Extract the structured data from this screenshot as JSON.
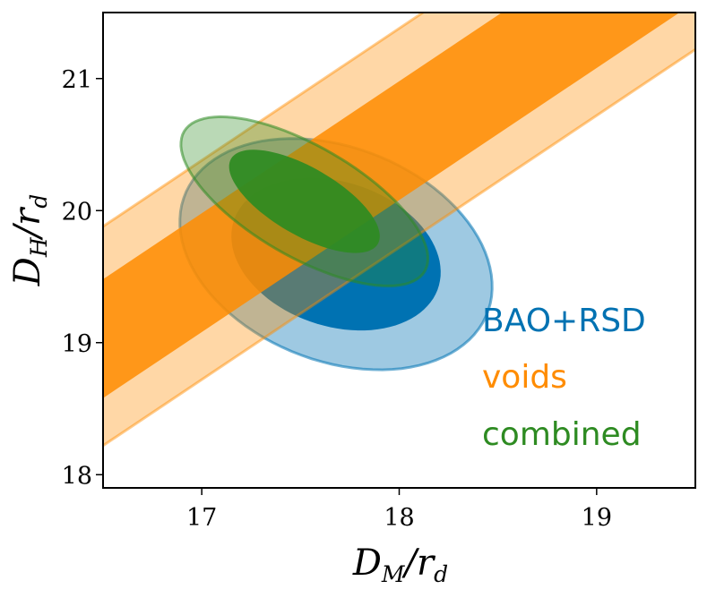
{
  "chart_data": {
    "type": "contour",
    "title": "",
    "xlabel": {
      "main": "D",
      "sub1": "M",
      "sep": "/r",
      "sub2": "d"
    },
    "ylabel": {
      "main": "D",
      "sub1": "H",
      "sep": "/r",
      "sub2": "d"
    },
    "xlim": [
      16.5,
      19.5
    ],
    "ylim": [
      17.9,
      21.5
    ],
    "xticks": [
      17,
      18,
      19
    ],
    "yticks": [
      18,
      19,
      20,
      21
    ],
    "xtick_labels": [
      "17",
      "18",
      "19"
    ],
    "ytick_labels": [
      "18",
      "19",
      "20",
      "21"
    ],
    "legend_position": "lower-right",
    "series": [
      {
        "name": "BAO+RSD",
        "color": "#0072b2",
        "shape": "ellipse",
        "center": [
          17.68,
          19.67
        ],
        "sigma1": {
          "a": 0.48,
          "b": 0.62,
          "angle_deg": 35
        },
        "sigma2": {
          "a": 0.7,
          "b": 0.95,
          "angle_deg": 35
        }
      },
      {
        "name": "voids",
        "color": "#ff8c00",
        "shape": "band",
        "slope": 1.0,
        "sigma1": {
          "intercept_low": 2.08,
          "intercept_high": 2.98
        },
        "sigma2": {
          "intercept_low": 1.72,
          "intercept_high": 3.38
        }
      },
      {
        "name": "combined",
        "color": "#2e8b22",
        "shape": "ellipse",
        "center": [
          17.52,
          20.07
        ],
        "sigma1": {
          "a": 0.22,
          "b": 0.5,
          "angle_deg": 44
        },
        "sigma2": {
          "a": 0.36,
          "b": 0.82,
          "angle_deg": 44
        }
      }
    ]
  }
}
